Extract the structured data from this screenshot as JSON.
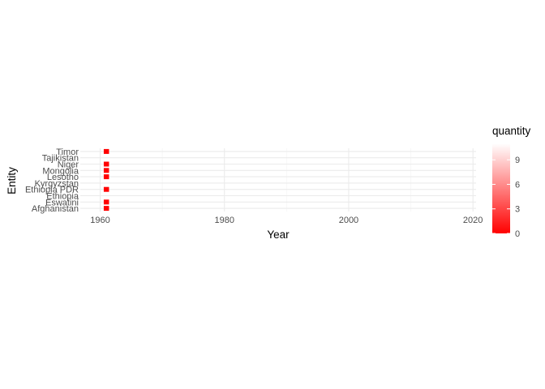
{
  "chart_data": {
    "type": "heatmap",
    "title": "",
    "xlabel": "Year",
    "ylabel": "Entity",
    "x_ticks": [
      1960,
      1980,
      2000,
      2020
    ],
    "xlim": [
      1956.8,
      2020.5
    ],
    "categories": [
      "Afghanistan",
      "Eswatini",
      "Ethiopia",
      "Ethiopia PDR",
      "Kyrgyzstan",
      "Lesotho",
      "Mongolia",
      "Niger",
      "Tajikistan",
      "Timor"
    ],
    "points": [
      {
        "entity": "Afghanistan",
        "year": 1961,
        "quantity": 0
      },
      {
        "entity": "Eswatini",
        "year": 1961,
        "quantity": 0
      },
      {
        "entity": "Ethiopia PDR",
        "year": 1961,
        "quantity": 0
      },
      {
        "entity": "Lesotho",
        "year": 1961,
        "quantity": 0
      },
      {
        "entity": "Mongolia",
        "year": 1961,
        "quantity": 0
      },
      {
        "entity": "Niger",
        "year": 1961,
        "quantity": 0
      },
      {
        "entity": "Timor",
        "year": 1961,
        "quantity": 0
      }
    ],
    "legend": {
      "title": "quantity",
      "ticks": [
        0,
        3,
        6,
        9
      ],
      "range": [
        0,
        11
      ],
      "colors": [
        "#ff0000",
        "#ffffff"
      ],
      "placement": "right"
    }
  }
}
